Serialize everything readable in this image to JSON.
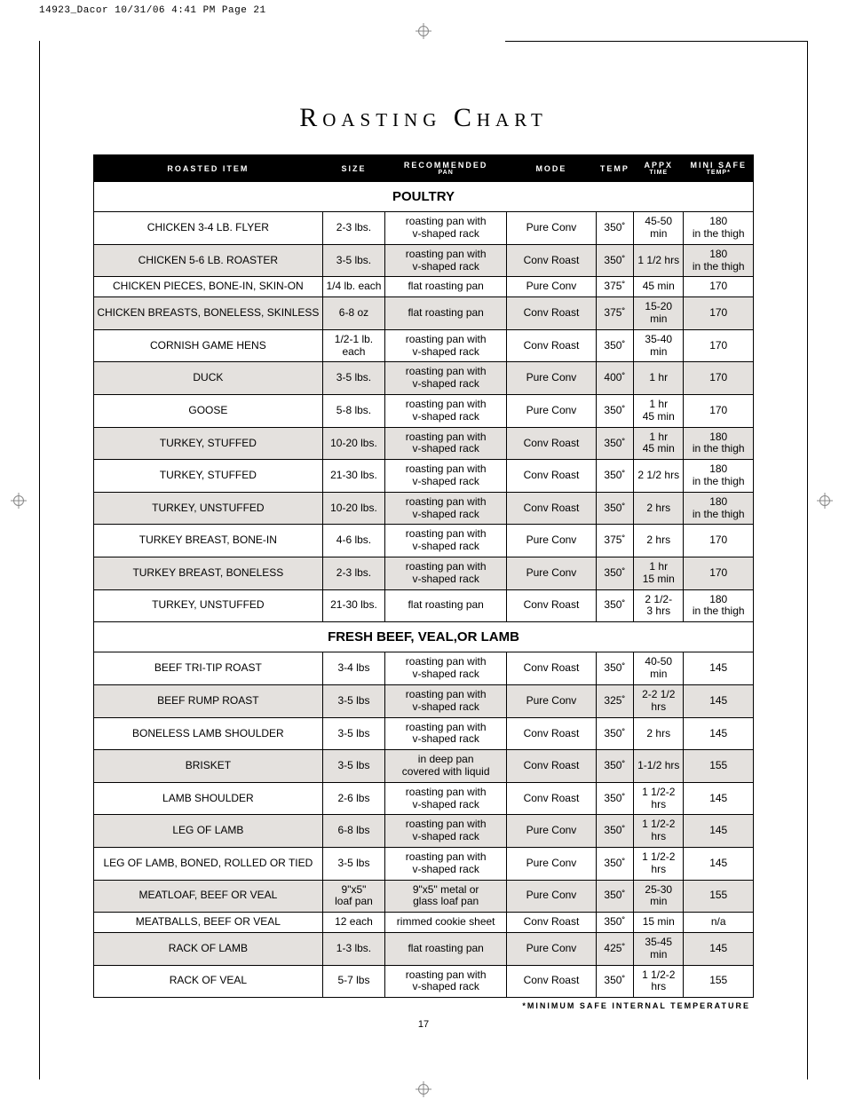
{
  "slug": "14923_Dacor  10/31/06  4:41 PM  Page 21",
  "title": "Roasting Chart",
  "footnote": "*MINIMUM SAFE INTERNAL TEMPERATURE",
  "page_number": "17",
  "columns": [
    {
      "label": "ROASTED ITEM"
    },
    {
      "label": "SIZE"
    },
    {
      "label": "RECOMMENDED",
      "sub": "PAN"
    },
    {
      "label": "MODE"
    },
    {
      "label": "TEMP"
    },
    {
      "label": "APPX",
      "sub": "TIME"
    },
    {
      "label": "MINI SAFE",
      "sub": "TEMP*"
    }
  ],
  "sections": [
    {
      "heading": "POULTRY",
      "rows": [
        {
          "shade": false,
          "item": "CHICKEN 3-4 LB. FLYER",
          "size": "2-3 lbs.",
          "pan": "roasting pan with\nv-shaped rack",
          "mode": "Pure Conv",
          "temp": "350˚",
          "time": "45-50\nmin",
          "safe": "180\nin the thigh"
        },
        {
          "shade": true,
          "item": "CHICKEN 5-6 LB. ROASTER",
          "size": "3-5 lbs.",
          "pan": "roasting pan with\nv-shaped rack",
          "mode": "Conv Roast",
          "temp": "350˚",
          "time": "1 1/2 hrs",
          "safe": "180\nin the thigh"
        },
        {
          "shade": false,
          "item": "CHICKEN PIECES, BONE-IN, SKIN-ON",
          "size": "1/4 lb. each",
          "pan": "flat roasting pan",
          "mode": "Pure Conv",
          "temp": "375˚",
          "time": "45 min",
          "safe": "170"
        },
        {
          "shade": true,
          "item": "CHICKEN BREASTS, BONELESS, SKINLESS",
          "size": "6-8 oz",
          "pan": "flat roasting pan",
          "mode": "Conv Roast",
          "temp": "375˚",
          "time": "15-20\nmin",
          "safe": "170"
        },
        {
          "shade": false,
          "item": "CORNISH GAME HENS",
          "size": "1/2-1 lb. each",
          "pan": "roasting pan with\nv-shaped rack",
          "mode": "Conv Roast",
          "temp": "350˚",
          "time": "35-40\nmin",
          "safe": "170"
        },
        {
          "shade": true,
          "item": "DUCK",
          "size": "3-5 lbs.",
          "pan": "roasting pan with\nv-shaped rack",
          "mode": "Pure Conv",
          "temp": "400˚",
          "time": "1 hr",
          "safe": "170"
        },
        {
          "shade": false,
          "item": "GOOSE",
          "size": "5-8 lbs.",
          "pan": "roasting pan with\nv-shaped rack",
          "mode": "Pure Conv",
          "temp": "350˚",
          "time": "1 hr\n45 min",
          "safe": "170"
        },
        {
          "shade": true,
          "item": "TURKEY, STUFFED",
          "size": "10-20 lbs.",
          "pan": "roasting pan with\nv-shaped rack",
          "mode": "Conv Roast",
          "temp": "350˚",
          "time": "1 hr\n45 min",
          "safe": "180\nin the thigh"
        },
        {
          "shade": false,
          "item": "TURKEY, STUFFED",
          "size": "21-30 lbs.",
          "pan": "roasting pan with\nv-shaped rack",
          "mode": "Conv Roast",
          "temp": "350˚",
          "time": "2 1/2 hrs",
          "safe": "180\nin the thigh"
        },
        {
          "shade": true,
          "item": "TURKEY, UNSTUFFED",
          "size": "10-20 lbs.",
          "pan": "roasting pan with\nv-shaped rack",
          "mode": "Conv Roast",
          "temp": "350˚",
          "time": "2 hrs",
          "safe": "180\nin the thigh"
        },
        {
          "shade": false,
          "item": "TURKEY BREAST, BONE-IN",
          "size": "4-6 lbs.",
          "pan": "roasting pan with\nv-shaped rack",
          "mode": "Pure Conv",
          "temp": "375˚",
          "time": "2 hrs",
          "safe": "170"
        },
        {
          "shade": true,
          "item": "TURKEY BREAST, BONELESS",
          "size": "2-3 lbs.",
          "pan": "roasting pan with\nv-shaped rack",
          "mode": "Pure Conv",
          "temp": "350˚",
          "time": "1 hr\n15 min",
          "safe": "170"
        },
        {
          "shade": false,
          "item": "TURKEY, UNSTUFFED",
          "size": "21-30 lbs.",
          "pan": "flat roasting pan",
          "mode": "Conv Roast",
          "temp": "350˚",
          "time": "2 1/2-\n3 hrs",
          "safe": "180\nin the thigh"
        }
      ]
    },
    {
      "heading": "FRESH BEEF, VEAL,OR LAMB",
      "rows": [
        {
          "shade": false,
          "item": "BEEF TRI-TIP ROAST",
          "size": "3-4 lbs",
          "pan": "roasting pan with\nv-shaped rack",
          "mode": "Conv Roast",
          "temp": "350˚",
          "time": "40-50\nmin",
          "safe": "145"
        },
        {
          "shade": true,
          "item": "BEEF RUMP ROAST",
          "size": "3-5 lbs",
          "pan": "roasting pan with\nv-shaped rack",
          "mode": "Pure Conv",
          "temp": "325˚",
          "time": "2-2 1/2\nhrs",
          "safe": "145"
        },
        {
          "shade": false,
          "item": "BONELESS LAMB SHOULDER",
          "size": "3-5 lbs",
          "pan": "roasting pan with\nv-shaped rack",
          "mode": "Conv Roast",
          "temp": "350˚",
          "time": "2 hrs",
          "safe": "145"
        },
        {
          "shade": true,
          "item": "BRISKET",
          "size": "3-5 lbs",
          "pan": "in deep pan\ncovered with liquid",
          "mode": "Conv Roast",
          "temp": "350˚",
          "time": "1-1/2 hrs",
          "safe": "155"
        },
        {
          "shade": false,
          "item": "LAMB SHOULDER",
          "size": "2-6 lbs",
          "pan": "roasting pan with\nv-shaped rack",
          "mode": "Conv Roast",
          "temp": "350˚",
          "time": "1 1/2-2\nhrs",
          "safe": "145"
        },
        {
          "shade": true,
          "item": "LEG OF LAMB",
          "size": "6-8 lbs",
          "pan": "roasting pan with\nv-shaped rack",
          "mode": "Pure Conv",
          "temp": "350˚",
          "time": "1 1/2-2\nhrs",
          "safe": "145"
        },
        {
          "shade": false,
          "item": "LEG OF LAMB, BONED, ROLLED OR TIED",
          "size": "3-5 lbs",
          "pan": "roasting pan with\nv-shaped rack",
          "mode": "Pure Conv",
          "temp": "350˚",
          "time": "1 1/2-2\nhrs",
          "safe": "145"
        },
        {
          "shade": true,
          "item": "MEATLOAF, BEEF OR VEAL",
          "size": "9\"x5\"\nloaf pan",
          "pan": "9\"x5\" metal or\nglass loaf pan",
          "mode": "Pure Conv",
          "temp": "350˚",
          "time": "25-30\nmin",
          "safe": "155"
        },
        {
          "shade": false,
          "item": "MEATBALLS, BEEF OR VEAL",
          "size": "12 each",
          "pan": "rimmed cookie sheet",
          "mode": "Conv Roast",
          "temp": "350˚",
          "time": "15 min",
          "safe": "n/a"
        },
        {
          "shade": true,
          "item": "RACK OF LAMB",
          "size": "1-3 lbs.",
          "pan": "flat roasting pan",
          "mode": "Pure Conv",
          "temp": "425˚",
          "time": "35-45\nmin",
          "safe": "145"
        },
        {
          "shade": false,
          "item": "RACK OF VEAL",
          "size": "5-7 lbs",
          "pan": "roasting pan with\nv-shaped rack",
          "mode": "Conv Roast",
          "temp": "350˚",
          "time": "1 1/2-2\nhrs",
          "safe": "155"
        }
      ]
    }
  ]
}
